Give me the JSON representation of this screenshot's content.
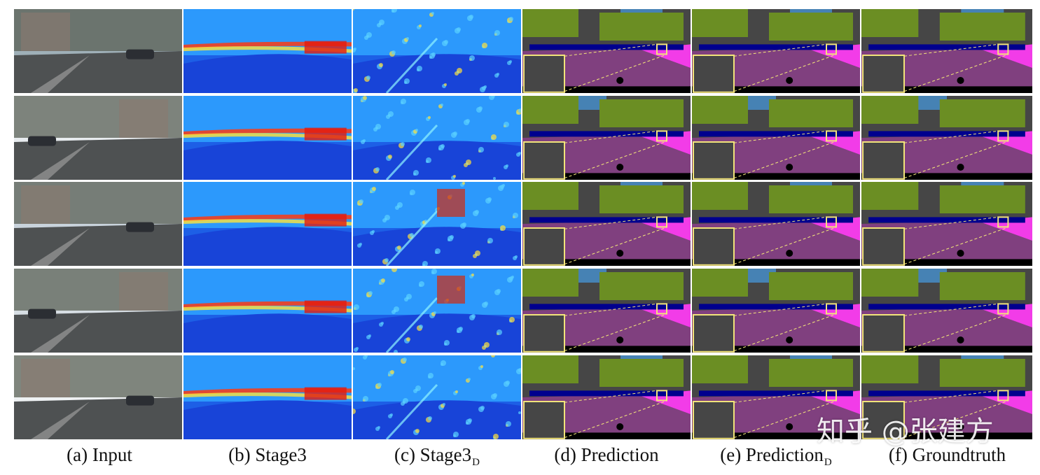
{
  "figure": {
    "columns": [
      {
        "id": "a",
        "label": "(a) Input",
        "kind": "photo"
      },
      {
        "id": "b",
        "label": "(b) Stage3",
        "kind": "heat_coarse"
      },
      {
        "id": "c",
        "label": "(c) Stage3",
        "label_sub": "D",
        "kind": "heat_fine"
      },
      {
        "id": "d",
        "label": "(d) Prediction",
        "kind": "seg"
      },
      {
        "id": "e",
        "label": "(e) Prediction",
        "label_sub": "D",
        "kind": "seg"
      },
      {
        "id": "f",
        "label": "(f) Groundtruth",
        "kind": "seg"
      }
    ],
    "rows": 5,
    "watermark": "知乎 @张建方",
    "colors": {
      "road": "#80407f",
      "sidewalk": "#f23ce8",
      "building": "#464646",
      "vegetation": "#6b8e23",
      "sky": "#4682b4",
      "car": "#00008e",
      "person": "#dc143c",
      "sign": "#dcdc00",
      "pole": "#999999",
      "highlight": "#f2e47a",
      "terrain": "#98fb98"
    }
  }
}
